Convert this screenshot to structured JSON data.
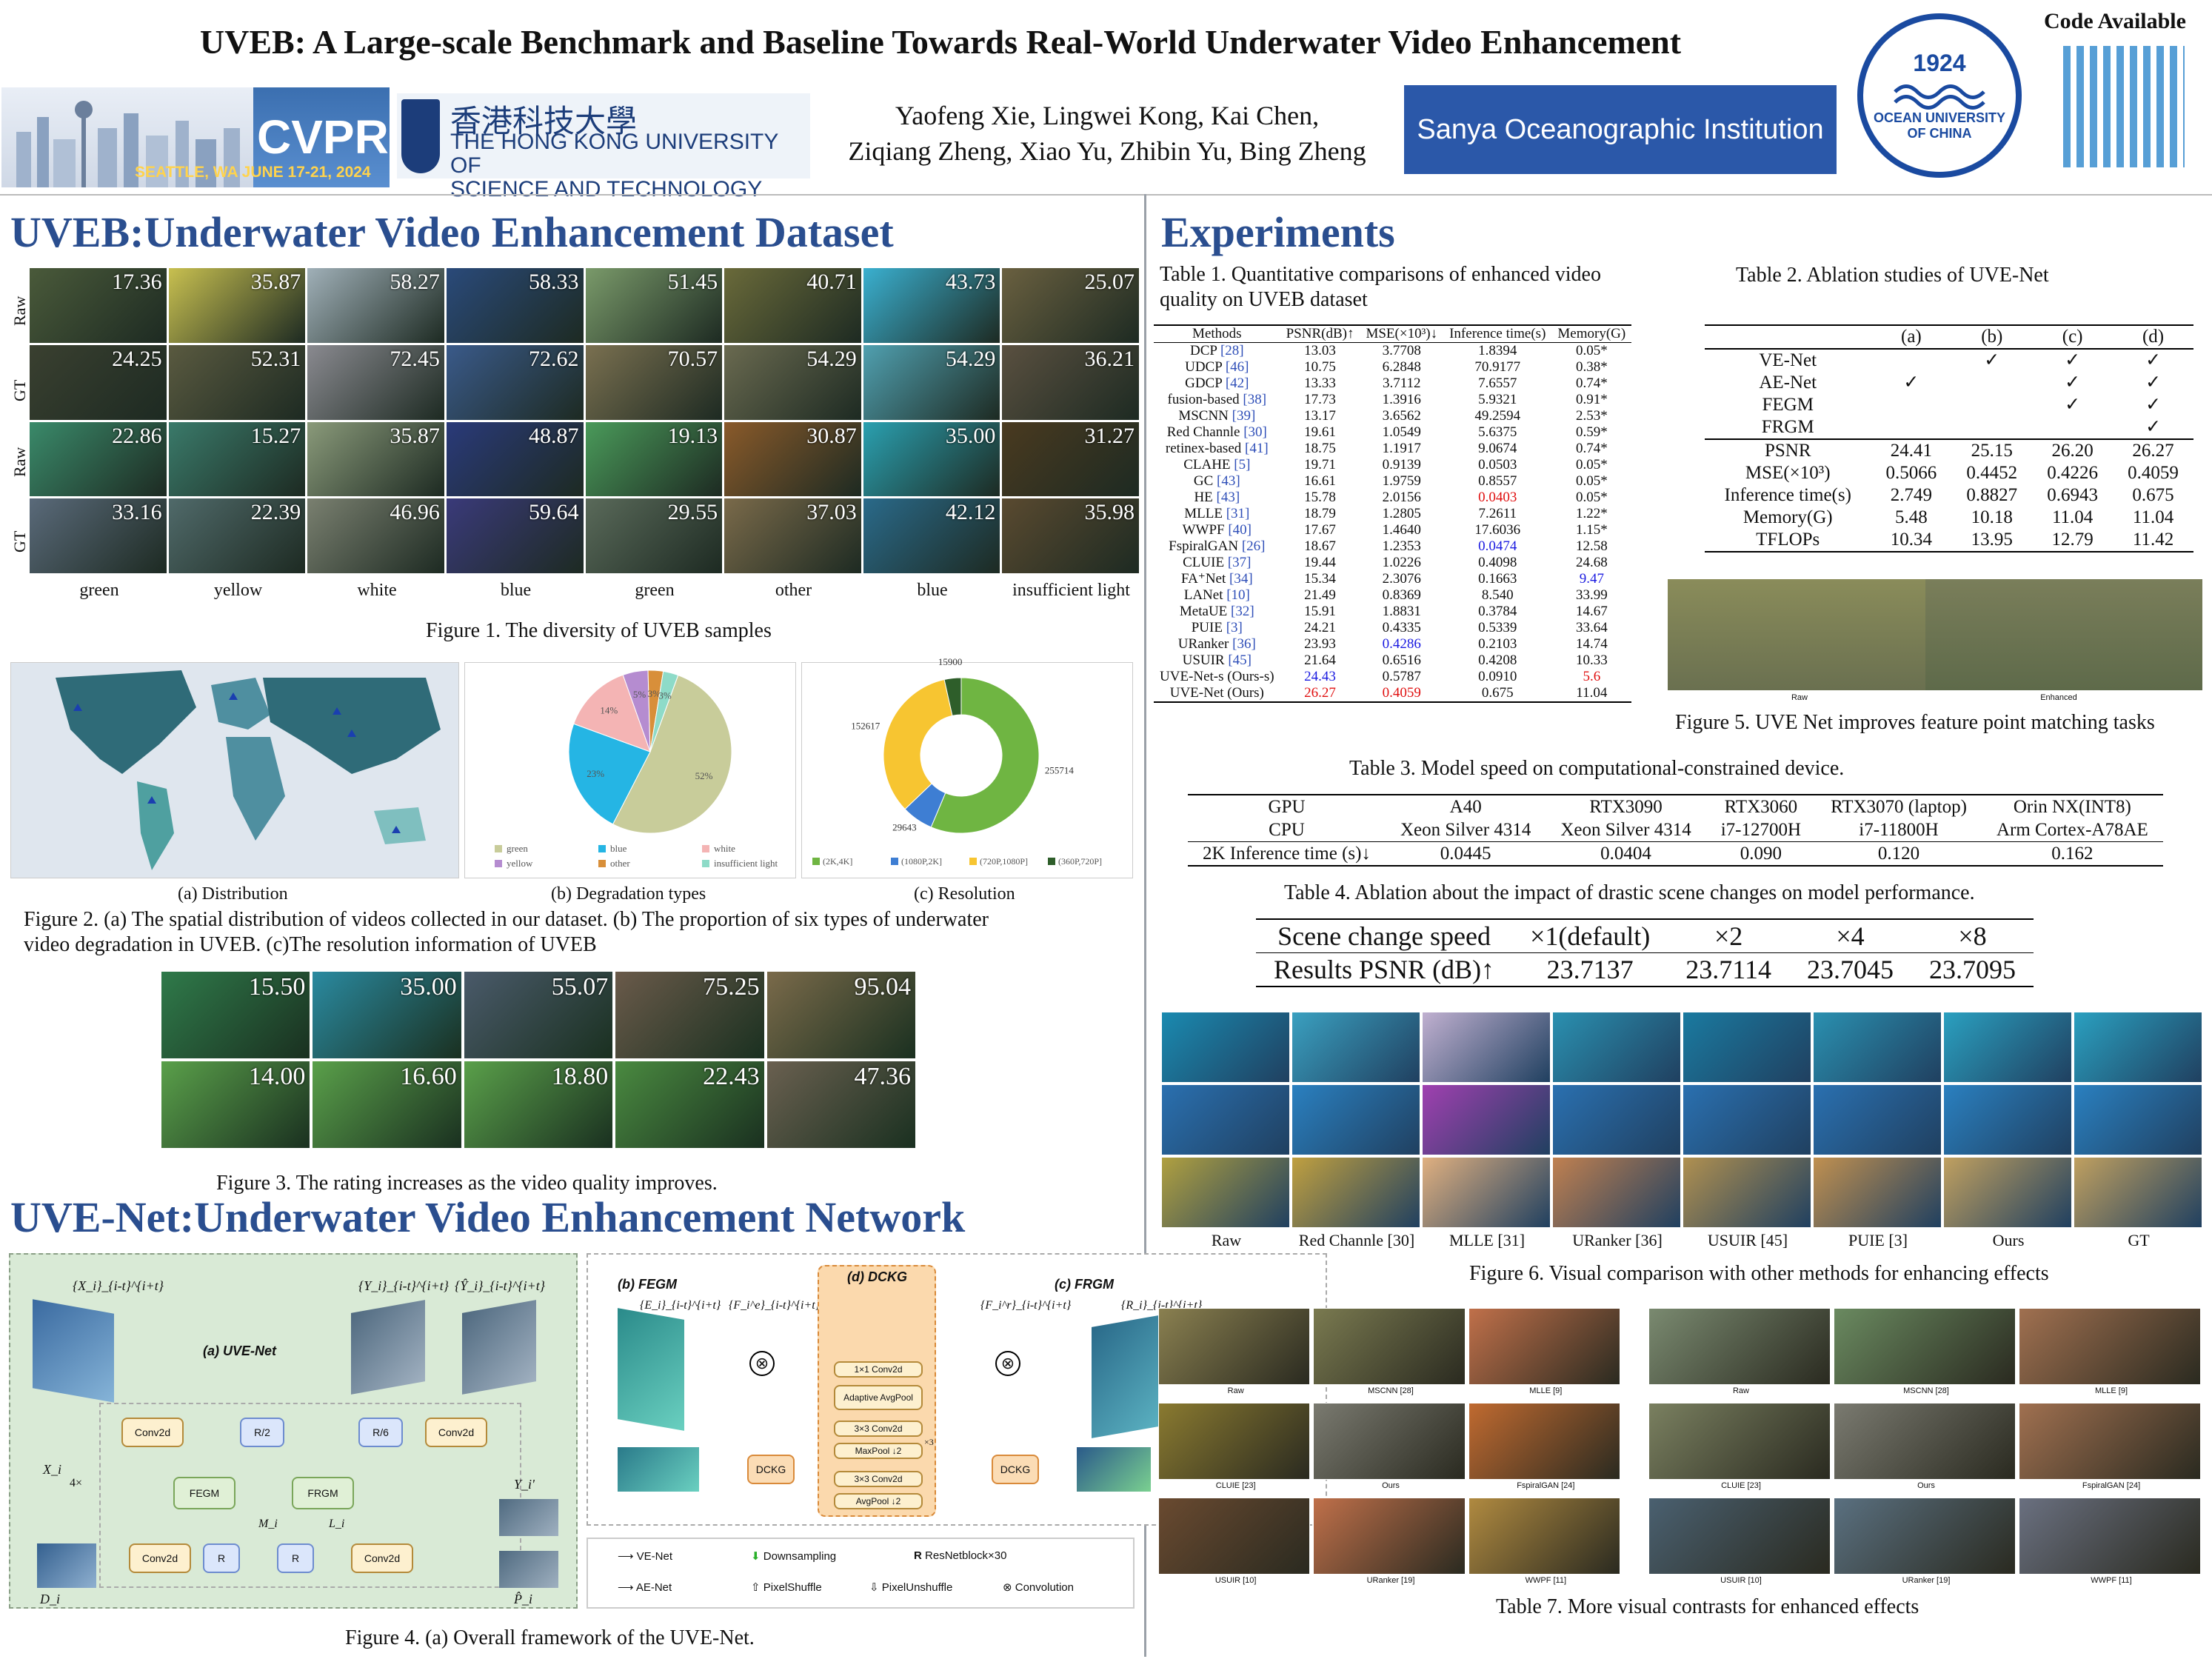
{
  "header": {
    "title": "UVEB: A Large-scale Benchmark and Baseline Towards Real-World Underwater Video Enhancement",
    "authors_line1": "Yaofeng Xie, Lingwei Kong, Kai Chen,",
    "authors_line2": "Ziqiang Zheng, Xiao Yu, Zhibin Yu, Bing Zheng",
    "cvpr_logo": "CVPR",
    "cvpr_location": "SEATTLE, WA  JUNE 17-21, 2024",
    "hkust_zh": "香港科技大學",
    "hkust_en1": "THE HONG KONG UNIVERSITY OF",
    "hkust_en2": "SCIENCE AND TECHNOLOGY",
    "sanya": "Sanya Oceanographic Institution",
    "ouc_year": "1924",
    "ouc_name": "OCEAN UNIVERSITY OF CHINA",
    "code_label": "Code Available"
  },
  "left": {
    "sec1_title": "UVEB:Underwater Video Enhancement Dataset",
    "fig1": {
      "row_labels": [
        "Raw",
        "GT",
        "Raw",
        "GT"
      ],
      "scores": [
        [
          "17.36",
          "35.87",
          "58.27",
          "58.33",
          "51.45",
          "40.71",
          "43.73",
          "25.07"
        ],
        [
          "24.25",
          "52.31",
          "72.45",
          "72.62",
          "70.57",
          "54.29",
          "54.29",
          "36.21"
        ],
        [
          "22.86",
          "15.27",
          "35.87",
          "48.87",
          "19.13",
          "30.87",
          "35.00",
          "31.27"
        ],
        [
          "33.16",
          "22.39",
          "46.96",
          "59.64",
          "29.55",
          "37.03",
          "42.12",
          "35.98"
        ]
      ],
      "col_labels": [
        "green",
        "yellow",
        "white",
        "blue",
        "green",
        "other",
        "blue",
        "insufficient light"
      ],
      "caption": "Figure 1. The diversity of UVEB samples"
    },
    "fig2": {
      "sub_a": "(a) Distribution",
      "sub_b": "(b) Degradation types",
      "sub_c": "(c) Resolution",
      "caption1": "Figure 2. (a) The spatial distribution of videos collected in our dataset. (b) The proportion of six types of underwater",
      "caption2": "video degradation in UVEB. (c)The resolution information of UVEB"
    },
    "fig3": {
      "scores": [
        "15.50",
        "35.00",
        "55.07",
        "75.25",
        "95.04",
        "14.00",
        "16.60",
        "18.80",
        "22.43",
        "47.36"
      ],
      "caption": "Figure 3. The rating increases as the video quality improves."
    },
    "sec2_title": "UVE-Net:Underwater Video Enhancement Network",
    "fig4": {
      "caption": "Figure 4. (a) Overall framework of the UVE-Net.",
      "uvenet_label": "(a) UVE-Net",
      "fegm_label": "(b) FEGM",
      "dckg_label": "(d) DCKG",
      "frgm_label": "(c) FRGM",
      "blocks": {
        "conv2d": "Conv2d",
        "r2": "R/2",
        "r6": "R/6",
        "fegm": "FEGM",
        "frgm": "FRGM",
        "r": "R",
        "dckg": "DCKG",
        "conv1": "1×1 Conv2d",
        "adaptive": "Adaptive AvgPool",
        "conv3a": "3×3 Conv2d",
        "maxpool": "MaxPool ↓2",
        "conv3b": "3×3 Conv2d",
        "avgpool": "AvgPool ↓2",
        "x3": "×3"
      },
      "symbols": {
        "X": "{X_i}_{i-t}^{i+t}",
        "Y": "{Y_i}_{i-t}^{i+t}",
        "Yhat": "{Ŷ_i}_{i-t}^{i+t}",
        "E": "{E_i}_{i-t}^{i+t}",
        "R": "{R_i}_{i-t}^{i+t}",
        "Fe": "{F_i^e}_{i-t}^{i+t}",
        "Fr": "{F_i^r}_{i-t}^{i+t}",
        "Xi": "X_i",
        "D": "D_i",
        "M": "M_i",
        "L": "L_i",
        "Yp": "Y_i'",
        "P": "P̂_i",
        "down": "4×"
      },
      "legend": {
        "venet": "VE-Net",
        "aenet": "AE-Net",
        "down": "Downsampling",
        "pixshuf": "PixelShuffle",
        "res": "ResNetblock×30",
        "pixunshuf": "PixelUnshuffle",
        "conv": "Convolution",
        "R": "R"
      }
    },
    "pie": {
      "labels": [
        "green",
        "blue",
        "white",
        "yellow",
        "other",
        "insufficient light"
      ],
      "values": [
        52,
        23,
        14,
        5,
        3,
        3
      ],
      "colors": [
        "#c8cc9a",
        "#25b5e4",
        "#f4b4b4",
        "#b58cd0",
        "#d88f3a",
        "#8edbc8"
      ]
    },
    "donut": {
      "labels": [
        "(2K,4K]",
        "(1080P,2K]",
        "(720P,1080P]",
        "(360P,720P]"
      ],
      "values": [
        255714,
        29643,
        152617,
        15900
      ],
      "colors": [
        "#6fb542",
        "#3e7ed3",
        "#f7c531",
        "#2e5e2a"
      ]
    }
  },
  "right": {
    "sec_title": "Experiments",
    "table1": {
      "caption1": "Table 1. Quantitative comparisons of enhanced video",
      "caption2": "quality on UVEB dataset",
      "headers": [
        "Methods",
        "PSNR(dB)↑",
        "MSE(×10³)↓",
        "Inference time(s)",
        "Memory(G)"
      ],
      "rows": [
        [
          "DCP",
          "[28]",
          "13.03",
          "3.7708",
          "1.8394",
          "0.05*"
        ],
        [
          "UDCP",
          "[46]",
          "10.75",
          "6.2848",
          "70.9177",
          "0.38*"
        ],
        [
          "GDCP",
          "[42]",
          "13.33",
          "3.7112",
          "7.6557",
          "0.74*"
        ],
        [
          "fusion-based",
          "[38]",
          "17.73",
          "1.3916",
          "5.9321",
          "0.91*"
        ],
        [
          "MSCNN",
          "[39]",
          "13.17",
          "3.6562",
          "49.2594",
          "2.53*"
        ],
        [
          "Red Channle",
          "[30]",
          "19.61",
          "1.0549",
          "5.6375",
          "0.59*"
        ],
        [
          "retinex-based",
          "[41]",
          "18.75",
          "1.1917",
          "9.0674",
          "0.74*"
        ],
        [
          "CLAHE",
          "[5]",
          "19.71",
          "0.9139",
          "0.0503",
          "0.05*"
        ],
        [
          "GC",
          "[43]",
          "16.61",
          "1.9759",
          "0.8557",
          "0.05*"
        ],
        [
          "HE",
          "[43]",
          "15.78",
          "2.0156",
          "0.0403",
          "0.05*"
        ],
        [
          "MLLE",
          "[31]",
          "18.79",
          "1.2805",
          "7.2611",
          "1.22*"
        ],
        [
          "WWPF",
          "[40]",
          "17.67",
          "1.4640",
          "17.6036",
          "1.15*"
        ],
        [
          "FspiralGAN",
          "[26]",
          "18.67",
          "1.2353",
          "0.0474",
          "12.58"
        ],
        [
          "CLUIE",
          "[37]",
          "19.44",
          "1.0226",
          "0.4098",
          "24.68"
        ],
        [
          "FA⁺Net",
          "[34]",
          "15.34",
          "2.3076",
          "0.1663",
          "9.47"
        ],
        [
          "LANet",
          "[10]",
          "21.49",
          "0.8369",
          "8.540",
          "33.99"
        ],
        [
          "MetaUE",
          "[32]",
          "15.91",
          "1.8831",
          "0.3784",
          "14.67"
        ],
        [
          "PUIE",
          "[3]",
          "24.21",
          "0.4335",
          "0.5339",
          "33.64"
        ],
        [
          "URanker",
          "[36]",
          "23.93",
          "0.4286",
          "0.2103",
          "14.74"
        ],
        [
          "USUIR",
          "[45]",
          "21.64",
          "0.6516",
          "0.4208",
          "10.33"
        ],
        [
          "UVE-Net-s (Ours-s)",
          "",
          "24.43",
          "0.5787",
          "0.0910",
          "5.6"
        ],
        [
          "UVE-Net (Ours)",
          "",
          "26.27",
          "0.4059",
          "0.675",
          "11.04"
        ]
      ]
    },
    "table2": {
      "caption": "Table 2.  Ablation studies of UVE-Net",
      "headers": [
        "",
        "(a)",
        "(b)",
        "(c)",
        "(d)"
      ],
      "modules": [
        [
          "VE-Net",
          "",
          "✓",
          "✓",
          "✓"
        ],
        [
          "AE-Net",
          "✓",
          "",
          "✓",
          "✓"
        ],
        [
          "FEGM",
          "",
          "",
          "✓",
          "✓"
        ],
        [
          "FRGM",
          "",
          "",
          "",
          "✓"
        ]
      ],
      "metrics": [
        [
          "PSNR",
          "24.41",
          "25.15",
          "26.20",
          "26.27"
        ],
        [
          "MSE(×10³)",
          "0.5066",
          "0.4452",
          "0.4226",
          "0.4059"
        ],
        [
          "Inference time(s)",
          "2.749",
          "0.8827",
          "0.6943",
          "0.675"
        ],
        [
          "Memory(G)",
          "5.48",
          "10.18",
          "11.04",
          "11.04"
        ],
        [
          "TFLOPs",
          "10.34",
          "13.95",
          "12.79",
          "11.42"
        ]
      ]
    },
    "fig5": {
      "caption": "Figure 5. UVE Net improves feature point matching tasks",
      "raw": "Raw",
      "enh": "Enhanced"
    },
    "table3": {
      "caption": "Table 3. Model speed on computational-constrained device.",
      "rows": [
        [
          "GPU",
          "A40",
          "RTX3090",
          "RTX3060",
          "RTX3070 (laptop)",
          "Orin NX(INT8)"
        ],
        [
          "CPU",
          "Xeon Silver 4314",
          "Xeon Silver 4314",
          "i7-12700H",
          "i7-11800H",
          "Arm Cortex-A78AE"
        ],
        [
          "2K Inference time (s)↓",
          "0.0445",
          "0.0404",
          "0.090",
          "0.120",
          "0.162"
        ]
      ]
    },
    "table4": {
      "caption": "Table 4. Ablation about the impact of drastic scene changes on model performance.",
      "rows": [
        [
          "Scene change speed",
          "×1(default)",
          "×2",
          "×4",
          "×8"
        ],
        [
          "Results PSNR (dB)↑",
          "23.7137",
          "23.7114",
          "23.7045",
          "23.7095"
        ]
      ]
    },
    "fig6": {
      "labels": [
        "Raw",
        "Red Channle [30]",
        "MLLE [31]",
        "URanker [36]",
        "USUIR [45]",
        "PUIE [3]",
        "Ours",
        "GT"
      ],
      "caption": "Figure 6. Visual comparison with other methods for enhancing effects"
    },
    "fig7": {
      "left_labels": [
        "Raw",
        "MSCNN [28]",
        "MLLE [9]",
        "CLUIE [23]",
        "Ours",
        "FspiralGAN [24]",
        "USUIR [10]",
        "URanker [19]",
        "WWPF [11]"
      ],
      "right_labels": [
        "Raw",
        "MSCNN [28]",
        "MLLE [9]",
        "CLUIE [23]",
        "Ours",
        "FspiralGAN [24]",
        "USUIR [10]",
        "URanker [19]",
        "WWPF [11]"
      ],
      "caption": "Table 7. More visual contrasts for enhanced effects"
    }
  }
}
